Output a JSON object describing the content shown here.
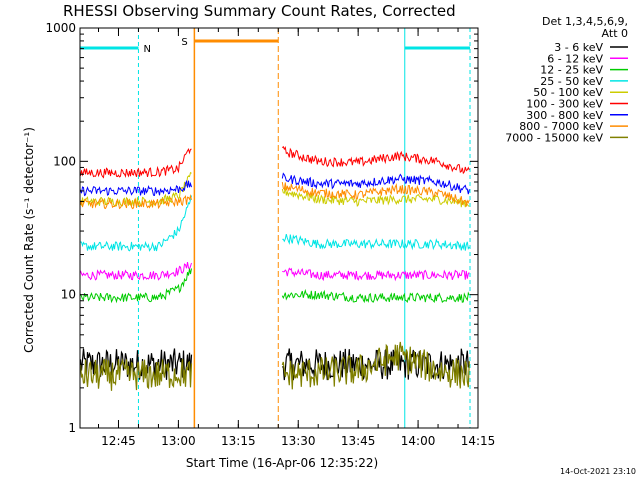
{
  "chart_data": {
    "type": "line",
    "title": "RHESSI Observing Summary Count Rates, Corrected",
    "xlabel": "Start Time (16-Apr-06 12:35:22)",
    "ylabel": "Corrected Count Rate (s⁻¹ detector⁻¹)",
    "yscale": "log",
    "ylim": [
      1,
      1000
    ],
    "xlim": [
      "12:35:22",
      "14:15:00"
    ],
    "x_ticks": [
      "12:45",
      "13:00",
      "13:15",
      "13:30",
      "13:45",
      "14:00",
      "14:15"
    ],
    "y_ticks": [
      "1",
      "10",
      "100",
      "1000"
    ],
    "legend_title_1": "Det 1,3,4,5,6,9,",
    "legend_title_2": "Att 0",
    "legend_position": "right",
    "footer": "14-Oct-2021 23:10",
    "markers": [
      {
        "label": "N",
        "type": "night",
        "color": "#00e5e5",
        "intervals": [
          [
            "12:35:22",
            "12:50:00"
          ],
          [
            "13:56:40",
            "14:13:00"
          ]
        ]
      },
      {
        "label": "S",
        "type": "saa",
        "color": "#ff8c00",
        "intervals": [
          [
            "13:04:00",
            "13:25:00"
          ]
        ]
      }
    ],
    "series": [
      {
        "name": "3 - 6 keV",
        "color": "#000000",
        "segments": [
          {
            "x": [
              "12:35:30",
              "12:45",
              "12:55",
              "13:00",
              "13:03:30"
            ],
            "y": [
              3,
              3,
              3,
              3,
              3
            ]
          },
          {
            "x": [
              "13:26:00",
              "13:35",
              "13:45",
              "13:55",
              "14:05",
              "14:13"
            ],
            "y": [
              3,
              3,
              3,
              3,
              3,
              3
            ]
          }
        ]
      },
      {
        "name": "6 - 12 keV",
        "color": "#ff00ff",
        "segments": [
          {
            "x": [
              "12:35:30",
              "12:45",
              "12:55",
              "13:00",
              "13:03:30"
            ],
            "y": [
              14,
              14,
              14,
              15,
              17
            ]
          },
          {
            "x": [
              "13:26:00",
              "13:35",
              "13:45",
              "13:55",
              "14:05",
              "14:13"
            ],
            "y": [
              15,
              14,
              14,
              14,
              14,
              14
            ]
          }
        ]
      },
      {
        "name": "12 - 25 keV",
        "color": "#00cc00",
        "segments": [
          {
            "x": [
              "12:35:30",
              "12:45",
              "12:55",
              "13:00",
              "13:03:30"
            ],
            "y": [
              9.5,
              9.5,
              9.5,
              11,
              16
            ]
          },
          {
            "x": [
              "13:26:00",
              "13:35",
              "13:45",
              "13:55",
              "14:05",
              "14:13"
            ],
            "y": [
              10,
              10,
              9.5,
              9.5,
              9.5,
              9.5
            ]
          }
        ]
      },
      {
        "name": "25 - 50 keV",
        "color": "#00e5e5",
        "segments": [
          {
            "x": [
              "12:35:30",
              "12:45",
              "12:55",
              "13:00",
              "13:03:30"
            ],
            "y": [
              23,
              23,
              23,
              30,
              55
            ]
          },
          {
            "x": [
              "13:26:00",
              "13:35",
              "13:45",
              "13:55",
              "14:05",
              "14:13"
            ],
            "y": [
              27,
              24,
              24,
              24,
              24,
              23
            ]
          }
        ]
      },
      {
        "name": "50 - 100 keV",
        "color": "#cccc00",
        "segments": [
          {
            "x": [
              "12:35:30",
              "12:45",
              "12:55",
              "13:00",
              "13:03:30"
            ],
            "y": [
              50,
              50,
              50,
              55,
              80
            ]
          },
          {
            "x": [
              "13:26:00",
              "13:35",
              "13:45",
              "13:55",
              "14:05",
              "14:13"
            ],
            "y": [
              60,
              52,
              50,
              52,
              52,
              48
            ]
          }
        ]
      },
      {
        "name": "100 - 300 keV",
        "color": "#ff0000",
        "segments": [
          {
            "x": [
              "12:35:30",
              "12:45",
              "12:55",
              "13:00",
              "13:03:30"
            ],
            "y": [
              82,
              82,
              83,
              88,
              135
            ]
          },
          {
            "x": [
              "13:26:00",
              "13:35",
              "13:45",
              "13:55",
              "14:05",
              "14:13"
            ],
            "y": [
              120,
              100,
              98,
              110,
              100,
              82
            ]
          }
        ]
      },
      {
        "name": "300 - 800 keV",
        "color": "#0000ff",
        "segments": [
          {
            "x": [
              "12:35:30",
              "12:45",
              "12:55",
              "13:00",
              "13:03:30"
            ],
            "y": [
              60,
              60,
              60,
              62,
              68
            ]
          },
          {
            "x": [
              "13:26:00",
              "13:35",
              "13:45",
              "13:55",
              "14:05",
              "14:13"
            ],
            "y": [
              75,
              68,
              68,
              74,
              70,
              60
            ]
          }
        ]
      },
      {
        "name": "800 - 7000 keV",
        "color": "#ff8c00",
        "segments": [
          {
            "x": [
              "12:35:30",
              "12:45",
              "12:55",
              "13:00",
              "13:03:30"
            ],
            "y": [
              48,
              48,
              48,
              50,
              52
            ]
          },
          {
            "x": [
              "13:26:00",
              "13:35",
              "13:45",
              "13:55",
              "14:05",
              "14:13"
            ],
            "y": [
              65,
              58,
              56,
              62,
              58,
              48
            ]
          }
        ]
      },
      {
        "name": "7000 - 15000 keV",
        "color": "#808000",
        "segments": [
          {
            "x": [
              "12:35:30",
              "12:45",
              "12:55",
              "13:00",
              "13:03:30"
            ],
            "y": [
              2.5,
              2.5,
              2.5,
              2.6,
              2.5
            ]
          },
          {
            "x": [
              "13:26:00",
              "13:35",
              "13:45",
              "13:55",
              "14:05",
              "14:13"
            ],
            "y": [
              2.5,
              2.6,
              2.7,
              3.5,
              2.7,
              2.5
            ]
          }
        ]
      }
    ]
  }
}
